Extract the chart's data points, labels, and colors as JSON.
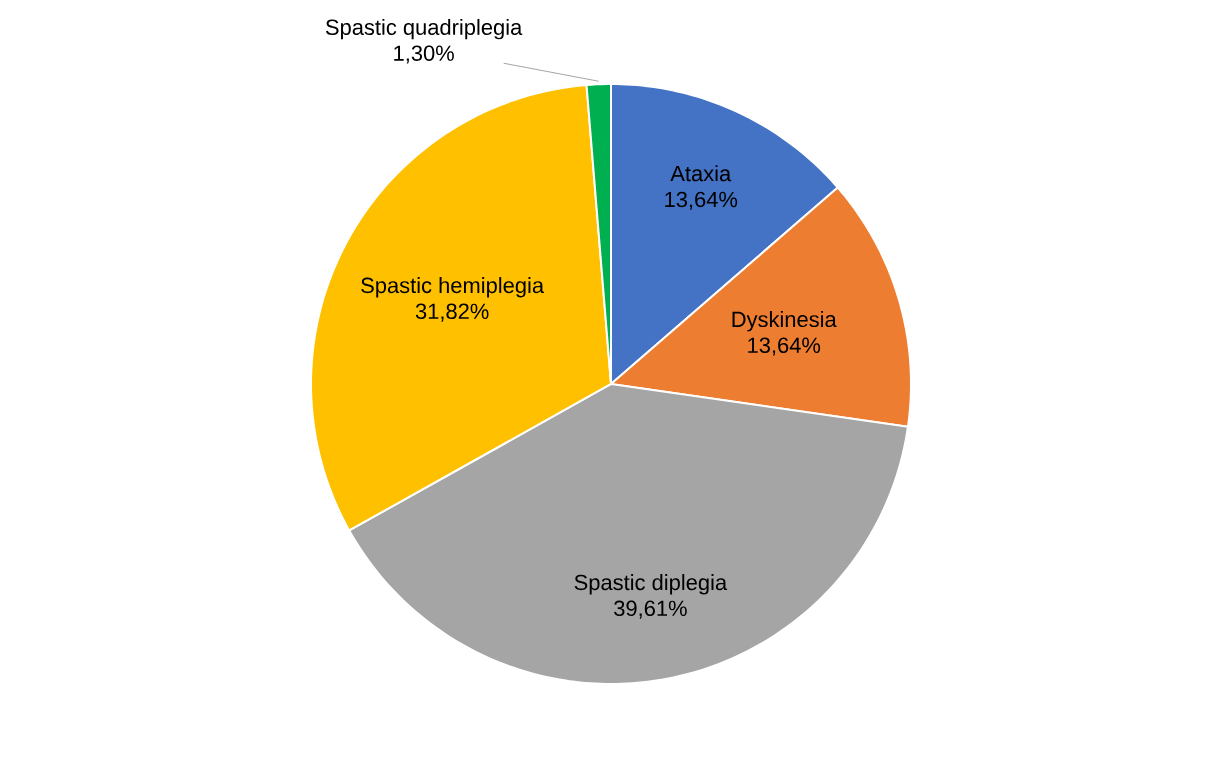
{
  "chart_data": {
    "type": "pie",
    "categories": [
      "Ataxia",
      "Dyskinesia",
      "Spastic diplegia",
      "Spastic hemiplegia",
      "Spastic quadriplegia"
    ],
    "values": [
      13.64,
      13.64,
      39.61,
      31.82,
      1.3
    ],
    "value_labels": [
      "13,64%",
      "13,64%",
      "39,61%",
      "31,82%",
      "1,30%"
    ],
    "colors": [
      "#4472c4",
      "#ed7d31",
      "#a5a5a5",
      "#ffc000",
      "#00b050"
    ]
  }
}
